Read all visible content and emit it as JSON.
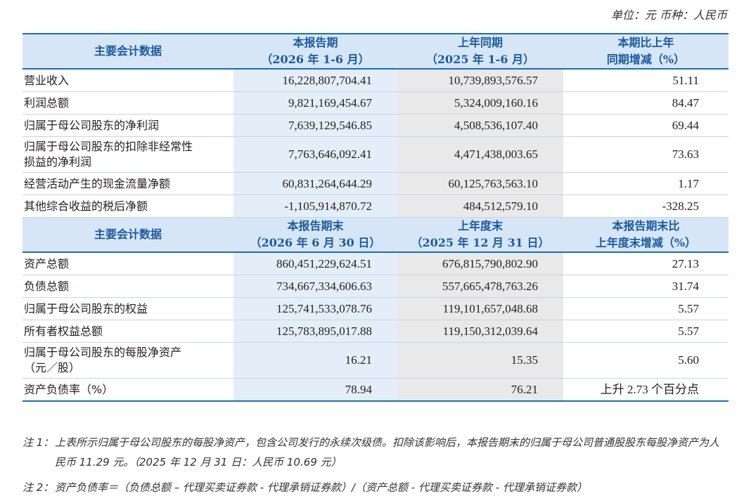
{
  "unit_text": "单位：元 币种：人民币",
  "section1": {
    "header": {
      "label": "主要会计数据",
      "col1_line1": "本报告期",
      "col1_line2": "（2026 年 1-6 月）",
      "col2_line1": "上年同期",
      "col2_line2": "（2025 年 1-6 月）",
      "col3_line1": "本期比上年",
      "col3_line2": "同期增减（%）"
    },
    "rows": [
      {
        "label": [
          "营业收入"
        ],
        "v1": "16,228,807,704.41",
        "v2": "10,739,893,576.57",
        "v3": "51.11"
      },
      {
        "label": [
          "利润总额"
        ],
        "v1": "9,821,169,454.67",
        "v2": "5,324,009,160.16",
        "v3": "84.47"
      },
      {
        "label": [
          "归属于母公司股东的净利润"
        ],
        "v1": "7,639,129,546.85",
        "v2": "4,508,536,107.40",
        "v3": "69.44"
      },
      {
        "label": [
          "归属于母公司股东的扣除非经常性",
          "损益的净利润"
        ],
        "v1": "7,763,646,092.41",
        "v2": "4,471,438,003.65",
        "v3": "73.63"
      },
      {
        "label": [
          "经营活动产生的现金流量净额"
        ],
        "v1": "60,831,264,644.29",
        "v2": "60,125,763,563.10",
        "v3": "1.17"
      },
      {
        "label": [
          "其他综合收益的税后净额"
        ],
        "v1": "-1,105,914,870.72",
        "v2": "484,512,579.10",
        "v3": "-328.25"
      }
    ]
  },
  "section2": {
    "header": {
      "label": "主要会计数据",
      "col1_line1": "本报告期末",
      "col1_line2": "（2026 年 6 月 30 日）",
      "col2_line1": "上年度末",
      "col2_line2": "（2025 年 12 月 31 日）",
      "col3_line1": "本报告期末比",
      "col3_line2": "上年度末增减（%）"
    },
    "rows": [
      {
        "label": [
          "资产总额"
        ],
        "v1": "860,451,229,624.51",
        "v2": "676,815,790,802.90",
        "v3": "27.13"
      },
      {
        "label": [
          "负债总额"
        ],
        "v1": "734,667,334,606.63",
        "v2": "557,665,478,763.26",
        "v3": "31.74"
      },
      {
        "label": [
          "归属于母公司股东的权益"
        ],
        "v1": "125,741,533,078.76",
        "v2": "119,101,657,048.68",
        "v3": "5.57"
      },
      {
        "label": [
          "所有者权益总额"
        ],
        "v1": "125,783,895,017.88",
        "v2": "119,150,312,039.64",
        "v3": "5.57"
      },
      {
        "label": [
          "归属于母公司股东的每股净资产",
          "（元／股）"
        ],
        "v1": "16.21",
        "v2": "15.35",
        "v3": "5.60"
      },
      {
        "label": [
          "资产负债率（%）"
        ],
        "v1": "78.94",
        "v2": "76.21",
        "v3": "上升 2.73 个百分点"
      }
    ]
  },
  "notes": [
    {
      "tag": "注 1：",
      "text": "上表所示归属于母公司股东的每股净资产，包含公司发行的永续次级债。扣除该影响后，本报告期末的归属于母公司普通股股东每股净资产为人民币 11.29 元。（2025 年 12 月 31 日：人民币 10.69 元）"
    },
    {
      "tag": "注 2：",
      "text": "资产负债率＝（负债总额 – 代理买卖证券款 - 代理承销证券款）/（资产总额 - 代理买卖证券款 - 代理承销证券款）"
    }
  ]
}
